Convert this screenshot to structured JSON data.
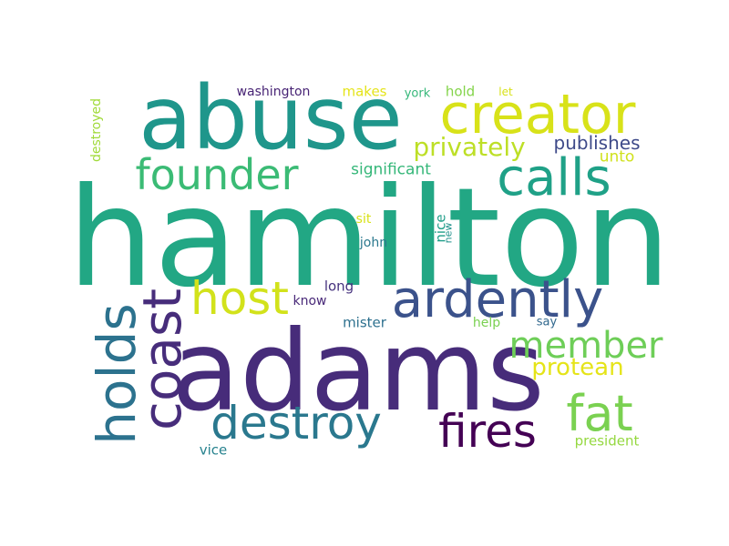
{
  "wordcloud": {
    "words": {
      "hamilton": {
        "text": "hamilton",
        "color": "#22a784"
      },
      "adams": {
        "text": "adams",
        "color": "#472c7a"
      },
      "abuse": {
        "text": "abuse",
        "color": "#1f968b"
      },
      "creator": {
        "text": "creator",
        "color": "#d8e219"
      },
      "calls": {
        "text": "calls",
        "color": "#1fa187"
      },
      "founder": {
        "text": "founder",
        "color": "#3bbb75"
      },
      "ardently": {
        "text": "ardently",
        "color": "#3b528b"
      },
      "host": {
        "text": "host",
        "color": "#d2e21b"
      },
      "destroy": {
        "text": "destroy",
        "color": "#2a788e"
      },
      "fires": {
        "text": "fires",
        "color": "#440154"
      },
      "fat": {
        "text": "fat",
        "color": "#7ad151"
      },
      "member": {
        "text": "member",
        "color": "#6ece58"
      },
      "protean": {
        "text": "protean",
        "color": "#e5e419"
      },
      "privately": {
        "text": "privately",
        "color": "#bddf26"
      },
      "publishes": {
        "text": "publishes",
        "color": "#3e4a89"
      },
      "unto": {
        "text": "unto",
        "color": "#d0e11c"
      },
      "significant": {
        "text": "significant",
        "color": "#35b779"
      },
      "washington": {
        "text": "washington",
        "color": "#482475"
      },
      "makes": {
        "text": "makes",
        "color": "#e5e419"
      },
      "york": {
        "text": "york",
        "color": "#35b779"
      },
      "hold": {
        "text": "hold",
        "color": "#84d44b"
      },
      "let": {
        "text": "let",
        "color": "#d8e219"
      },
      "sit": {
        "text": "sit",
        "color": "#d8e219"
      },
      "john": {
        "text": "john",
        "color": "#2a788e"
      },
      "long": {
        "text": "long",
        "color": "#46327e"
      },
      "know": {
        "text": "know",
        "color": "#482878"
      },
      "mister": {
        "text": "mister",
        "color": "#2d708e"
      },
      "help": {
        "text": "help",
        "color": "#7ad151"
      },
      "say": {
        "text": "say",
        "color": "#31688e"
      },
      "vice": {
        "text": "vice",
        "color": "#26828e"
      },
      "president": {
        "text": "president",
        "color": "#95d840"
      },
      "holds": {
        "text": "holds",
        "color": "#2c728e"
      },
      "coast": {
        "text": "coast",
        "color": "#472d7b"
      },
      "destroyed": {
        "text": "destroyed",
        "color": "#a0da39"
      },
      "nice": {
        "text": "nice",
        "color": "#1f9e89"
      },
      "new": {
        "text": "new",
        "color": "#21918c"
      }
    }
  }
}
